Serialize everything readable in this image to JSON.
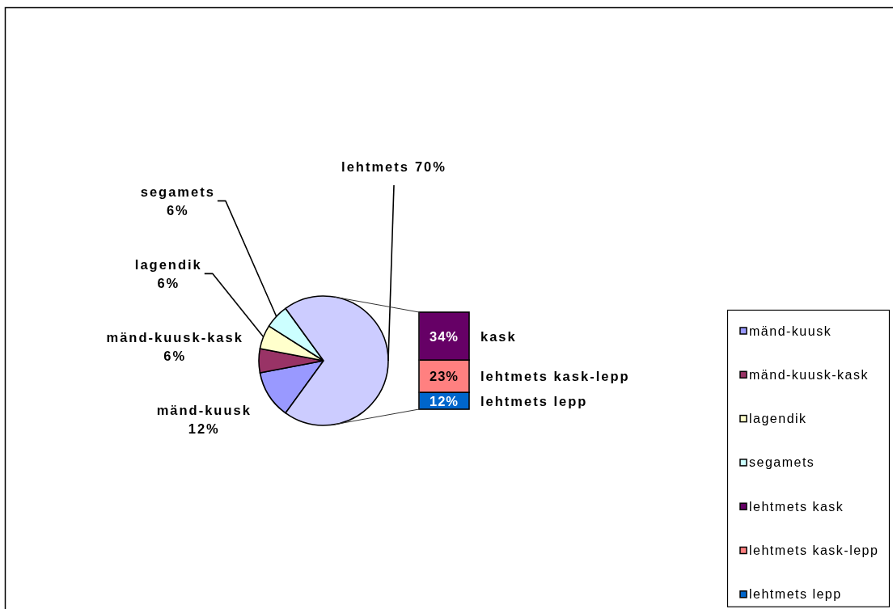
{
  "chart_data": [
    {
      "type": "pie",
      "categories": [
        "mänd-kuusk",
        "mänd-kuusk-kask",
        "lagendik",
        "segamets",
        "lehtmets"
      ],
      "values": [
        12,
        6,
        6,
        6,
        70
      ],
      "colors": [
        "#9999ff",
        "#993366",
        "#ffffcc",
        "#ccffff",
        "#ccccff"
      ],
      "value_labels": [
        "12%",
        "6%",
        "6%",
        "6%",
        "70%"
      ],
      "legend": "right"
    },
    {
      "type": "bar",
      "stacked": true,
      "categories": [
        null
      ],
      "series": [
        {
          "name": "lehtmets lepp",
          "color": "#0066cc",
          "values": [
            12
          ],
          "value_labels": [
            "12%"
          ]
        },
        {
          "name": "lehtmets kask-lepp",
          "color": "#ff8080",
          "values": [
            23
          ],
          "value_labels": [
            "23%"
          ]
        },
        {
          "name": "lehtmets kask",
          "color": "#660066",
          "values": [
            34
          ],
          "value_labels": [
            "34%"
          ]
        }
      ],
      "annotations": [
        "lehtmets lepp",
        "lehtmets kask-lepp",
        "kask"
      ],
      "legend": "right"
    }
  ]
}
